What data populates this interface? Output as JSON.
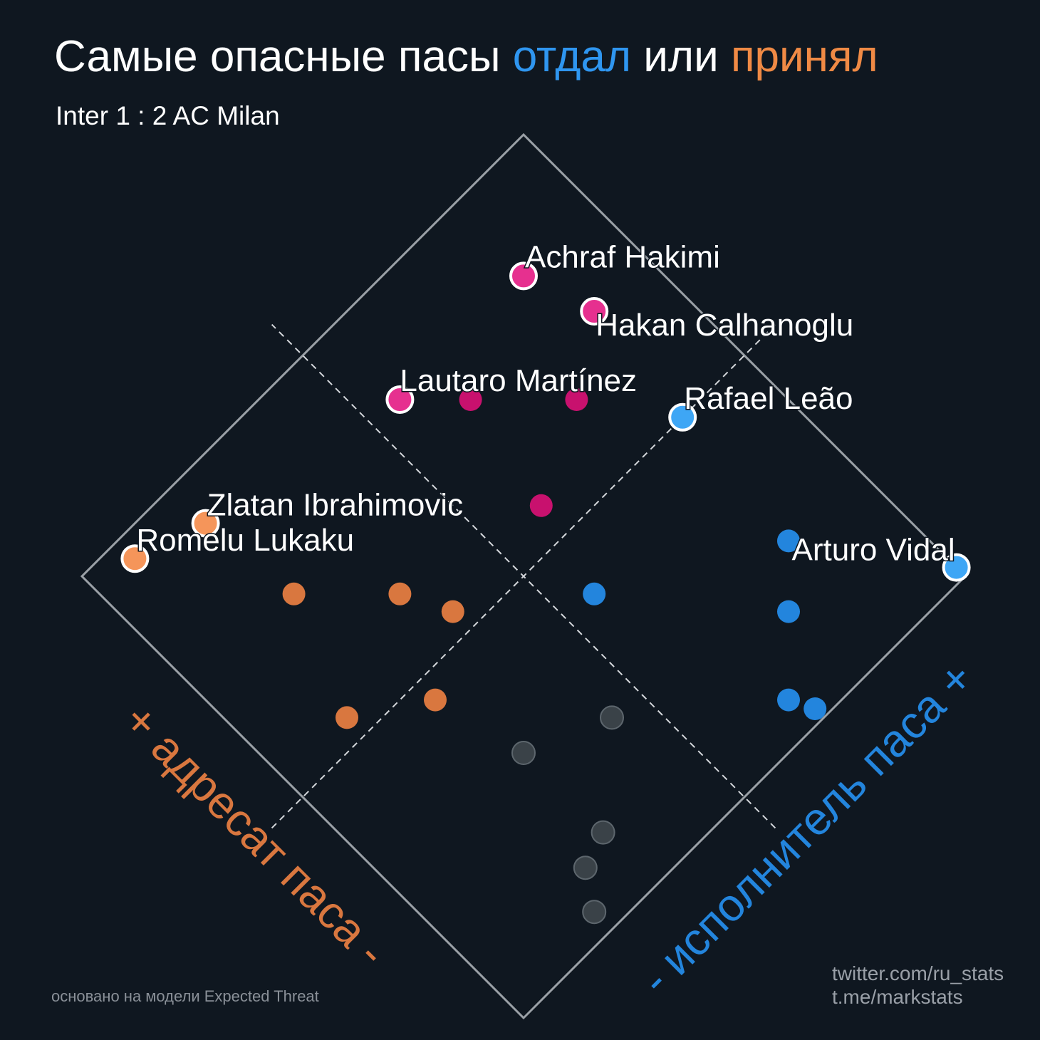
{
  "title": {
    "part1": "Самые опасные пасы ",
    "part2": "отдал",
    "part3": " или ",
    "part4": "принял"
  },
  "subtitle": "Inter 1 : 2 AC Milan",
  "footnote": "основано на модели Expected Threat",
  "credits": [
    "twitter.com/ru_stats",
    "t.me/markstats"
  ],
  "colors": {
    "background": "#0f1720",
    "both": "#c8116e",
    "both_highlight": "#e6308f",
    "passer": "#2385dd",
    "passer_highlight": "#3ea6f5",
    "receiver": "#d9773f",
    "receiver_highlight": "#f5955a",
    "neither": "#3a4248",
    "title_blue": "#2f96f0",
    "title_orange": "#f08a45",
    "frame": "#9aa0a6"
  },
  "chart_data": {
    "type": "scatter",
    "title": "Самые опасные пасы отдал или принял",
    "subtitle": "Inter 1 : 2 AC Milan",
    "axis_passer": {
      "label": "- исполнитель паса +",
      "range": [
        0,
        1
      ]
    },
    "axis_receiver": {
      "label": "+ адресат паса -",
      "range": [
        0,
        1
      ]
    },
    "quadrant_split": 0.5,
    "grid": false,
    "legend": "none",
    "points": [
      {
        "name": "Achraf Hakimi",
        "passer": 0.84,
        "receiver": 0.84,
        "group": "both",
        "labeled": true
      },
      {
        "name": "Hakan Calhanoglu",
        "passer": 0.88,
        "receiver": 0.72,
        "group": "both",
        "labeled": true
      },
      {
        "name": "Lautaro Martínez",
        "passer": 0.56,
        "receiver": 0.84,
        "group": "both",
        "labeled": true
      },
      {
        "name": "",
        "passer": 0.76,
        "receiver": 0.64,
        "group": "both"
      },
      {
        "name": "",
        "passer": 0.64,
        "receiver": 0.76,
        "group": "both"
      },
      {
        "name": "",
        "passer": 0.6,
        "receiver": 0.56,
        "group": "both"
      },
      {
        "name": "Rafael Leão",
        "passer": 0.86,
        "receiver": 0.5,
        "group": "passer",
        "labeled": true
      },
      {
        "name": "Arturo Vidal",
        "passer": 1.0,
        "receiver": 0.02,
        "group": "passer",
        "labeled": true
      },
      {
        "name": "",
        "passer": 0.84,
        "receiver": 0.24,
        "group": "passer"
      },
      {
        "name": "",
        "passer": 0.76,
        "receiver": 0.16,
        "group": "passer"
      },
      {
        "name": "",
        "passer": 0.56,
        "receiver": 0.4,
        "group": "passer"
      },
      {
        "name": "",
        "passer": 0.66,
        "receiver": 0.06,
        "group": "passer"
      },
      {
        "name": "",
        "passer": 0.68,
        "receiver": 0.02,
        "group": "passer"
      },
      {
        "name": "Zlatan Ibrahimovic",
        "passer": 0.2,
        "receiver": 0.92,
        "group": "receiver",
        "labeled": true
      },
      {
        "name": "Romelu Lukaku",
        "passer": 0.08,
        "receiver": 0.96,
        "group": "receiver",
        "labeled": true
      },
      {
        "name": "",
        "passer": 0.38,
        "receiver": 0.54,
        "group": "receiver"
      },
      {
        "name": "",
        "passer": 0.22,
        "receiver": 0.74,
        "group": "receiver"
      },
      {
        "name": "",
        "passer": 0.34,
        "receiver": 0.62,
        "group": "receiver"
      },
      {
        "name": "",
        "passer": 0.26,
        "receiver": 0.46,
        "group": "receiver"
      },
      {
        "name": "",
        "passer": 0.14,
        "receiver": 0.54,
        "group": "receiver"
      },
      {
        "name": "",
        "passer": 0.3,
        "receiver": 0.3,
        "group": "neither"
      },
      {
        "name": "",
        "passer": 0.44,
        "receiver": 0.24,
        "group": "neither"
      },
      {
        "name": "",
        "passer": 0.24,
        "receiver": 0.1,
        "group": "neither"
      },
      {
        "name": "",
        "passer": 0.3,
        "receiver": 0.12,
        "group": "neither"
      },
      {
        "name": "",
        "passer": 0.2,
        "receiver": 0.04,
        "group": "neither"
      }
    ]
  }
}
